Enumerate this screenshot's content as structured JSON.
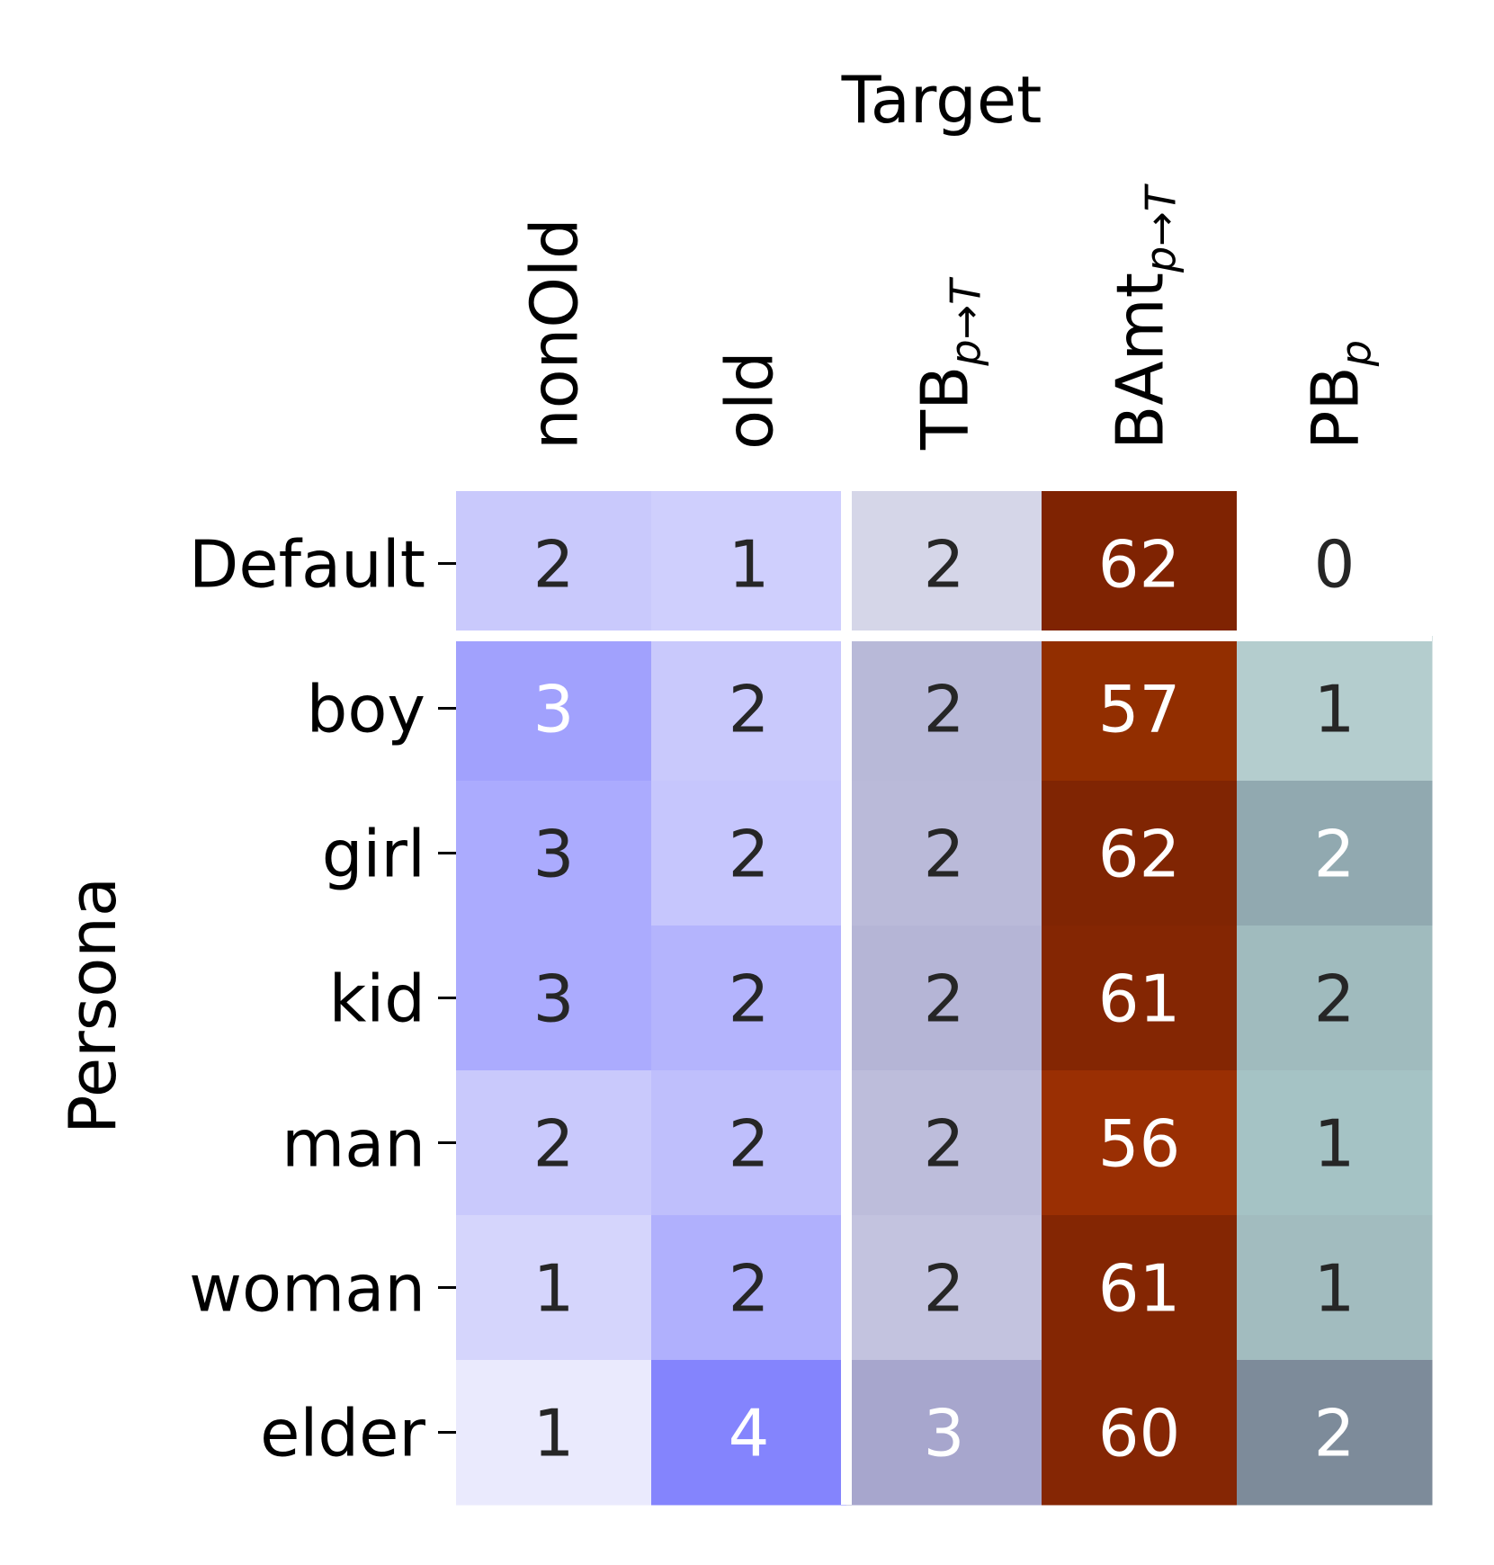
{
  "chart_data": {
    "type": "heatmap",
    "xlabel": "Target",
    "ylabel": "Persona",
    "x_ticks": [
      {
        "main": "nonOld",
        "sub": ""
      },
      {
        "main": "old",
        "sub": ""
      },
      {
        "main": "TB",
        "sub": "p→T"
      },
      {
        "main": "BAmt",
        "sub": "p→T"
      },
      {
        "main": "PB",
        "sub": "p"
      }
    ],
    "y_ticks": [
      "Default",
      "boy",
      "girl",
      "kid",
      "man",
      "woman",
      "elder"
    ],
    "values": [
      [
        2,
        1,
        2,
        62,
        0
      ],
      [
        3,
        2,
        2,
        57,
        1
      ],
      [
        3,
        2,
        2,
        62,
        2
      ],
      [
        3,
        2,
        2,
        61,
        2
      ],
      [
        2,
        2,
        2,
        56,
        1
      ],
      [
        1,
        2,
        2,
        61,
        1
      ],
      [
        1,
        4,
        3,
        60,
        2
      ]
    ],
    "cell_colors": [
      [
        "#c9c9fc",
        "#cfcffd",
        "#d5d6e8",
        "#7f2302",
        "#ffffff"
      ],
      [
        "#a1a1fd",
        "#c9c9fc",
        "#b8b9d8",
        "#922e00",
        "#b4cdce"
      ],
      [
        "#ababfe",
        "#c6c6fd",
        "#babad9",
        "#802503",
        "#91a9b0"
      ],
      [
        "#ababfe",
        "#b4b4fd",
        "#b5b5d6",
        "#842603",
        "#a0bbbe"
      ],
      [
        "#c9c9fc",
        "#bfbffc",
        "#bdbddb",
        "#9a2f03",
        "#a5c3c5"
      ],
      [
        "#d5d5fc",
        "#b0b0fd",
        "#c3c3df",
        "#842603",
        "#a2bcbf"
      ],
      [
        "#eaeafd",
        "#8484fd",
        "#a7a6cd",
        "#852604",
        "#7d8b9a"
      ]
    ],
    "text_colors": [
      [
        "#262626",
        "#262626",
        "#262626",
        "#ffffff",
        "#262626"
      ],
      [
        "#ffffff",
        "#262626",
        "#262626",
        "#ffffff",
        "#262626"
      ],
      [
        "#262626",
        "#262626",
        "#262626",
        "#ffffff",
        "#ffffff"
      ],
      [
        "#262626",
        "#262626",
        "#262626",
        "#ffffff",
        "#262626"
      ],
      [
        "#262626",
        "#262626",
        "#262626",
        "#ffffff",
        "#262626"
      ],
      [
        "#262626",
        "#262626",
        "#262626",
        "#ffffff",
        "#262626"
      ],
      [
        "#262626",
        "#ffffff",
        "#ffffff",
        "#ffffff",
        "#ffffff"
      ]
    ],
    "separators": {
      "after_row": 0,
      "after_col": 1
    },
    "colorbar": false,
    "grid": false
  }
}
